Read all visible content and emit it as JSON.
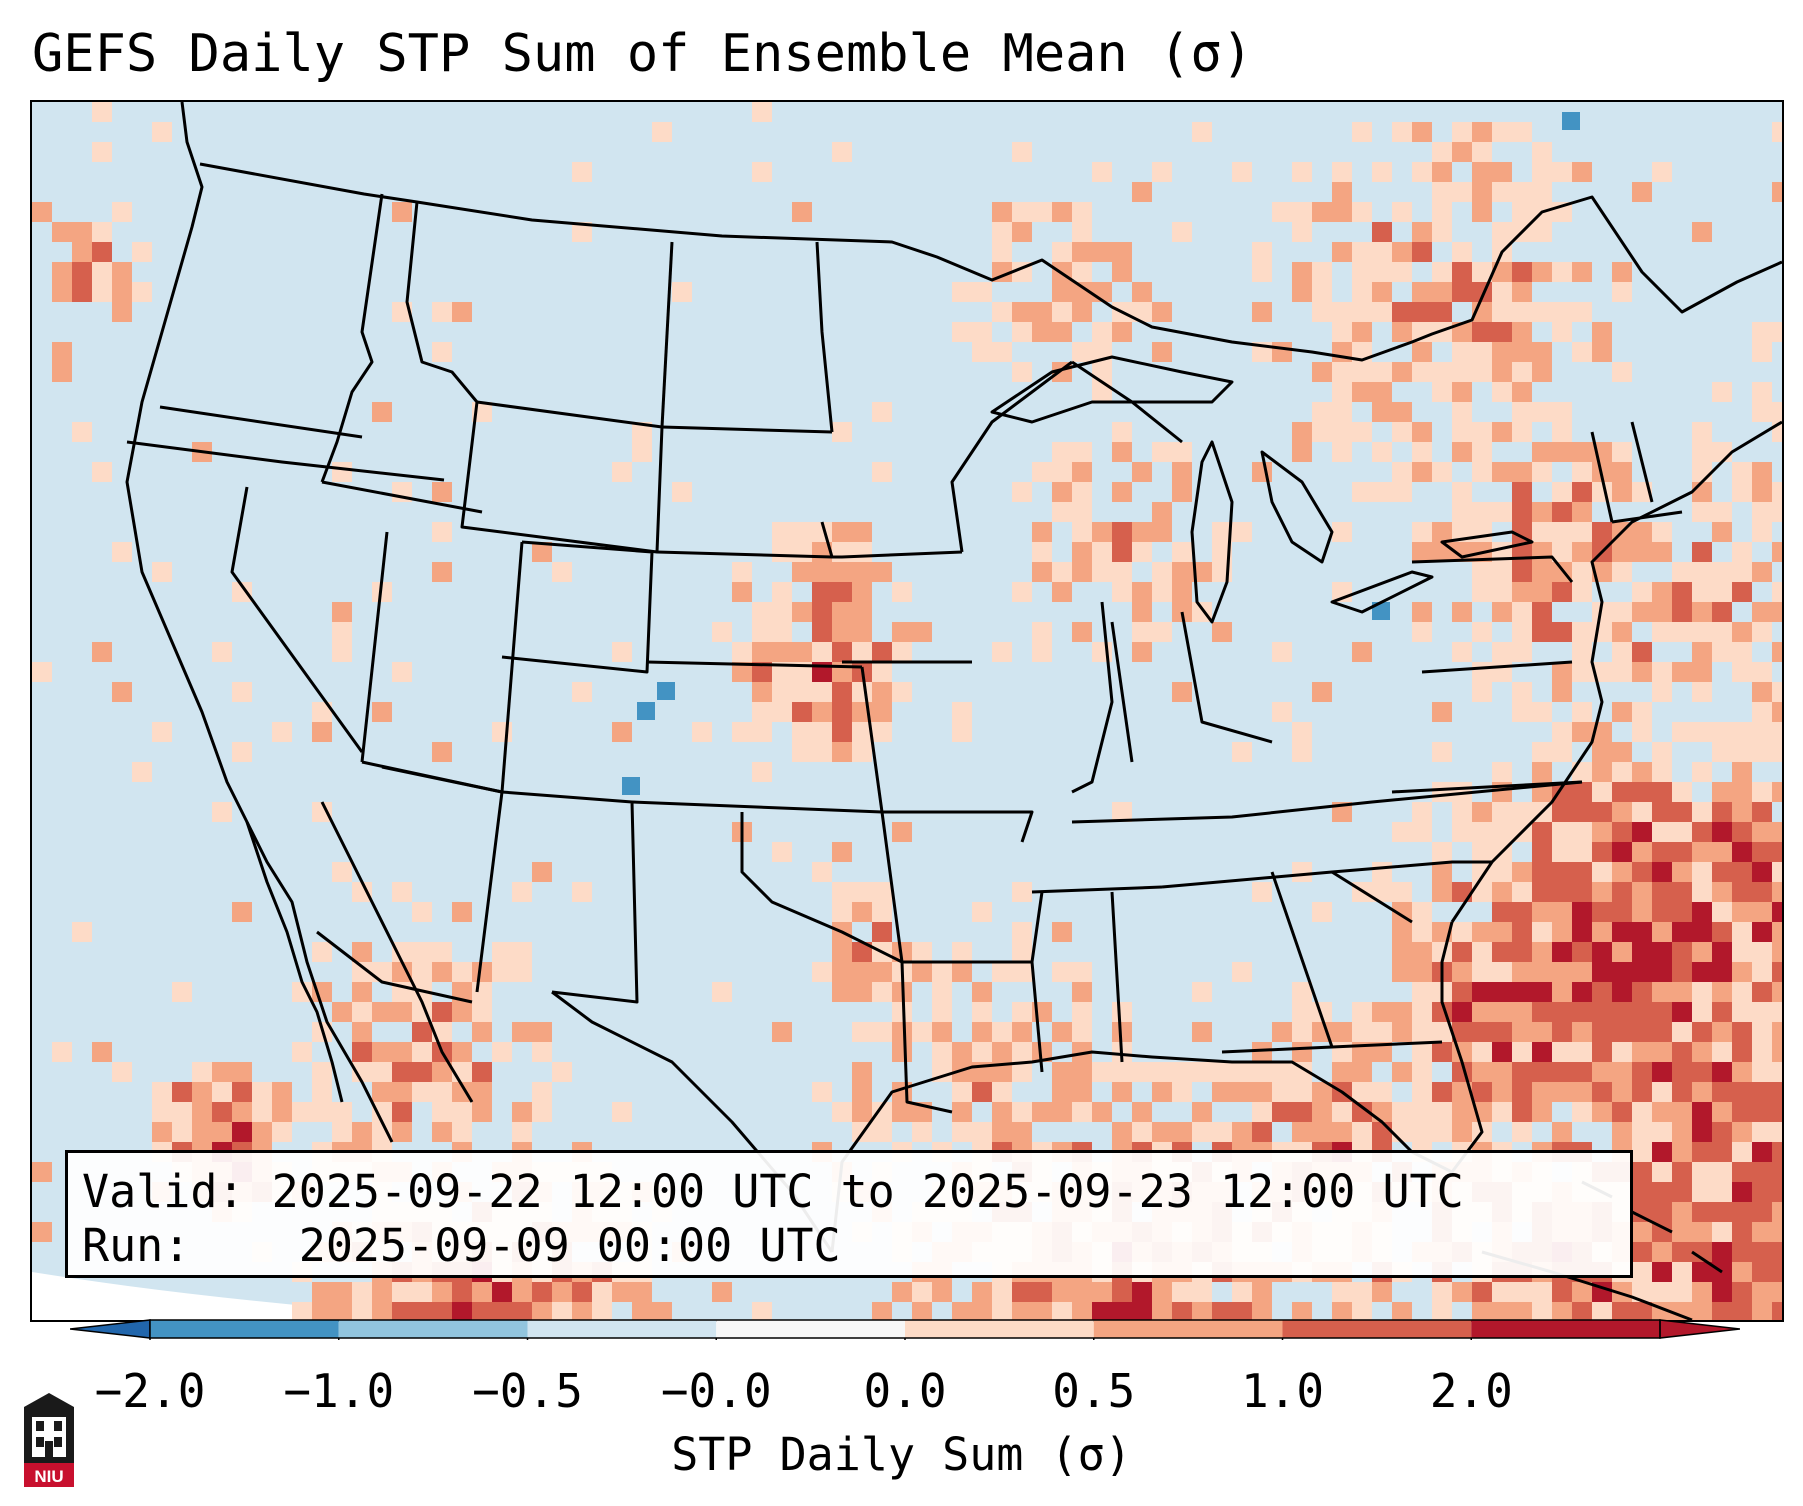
{
  "title": "GEFS Daily STP Sum of Ensemble Mean (σ)",
  "map": {
    "region": "Continental United States",
    "field": "STP daily sum, ensemble mean anomaly",
    "features": [
      "state-borders",
      "country-borders",
      "coastlines",
      "great-lakes"
    ],
    "background_color": "#d1e5f0"
  },
  "info_box": {
    "valid_label": "Valid:",
    "valid_value": "2025-09-22 12:00 UTC to 2025-09-23 12:00 UTC",
    "run_label": "Run:",
    "run_value": "2025-09-09 00:00 UTC"
  },
  "colorbar": {
    "ticks": [
      "−2.0",
      "−1.0",
      "−0.5",
      "−0.0",
      "0.0",
      "0.5",
      "1.0",
      "2.0"
    ],
    "colors": [
      "#4393c3",
      "#92c5de",
      "#d1e5f0",
      "#f7f7f7",
      "#fddbc7",
      "#f4a582",
      "#d6604d",
      "#b2182b"
    ],
    "extend_low_color": "#2166ac",
    "extend_high_color": "#b2182b",
    "label": "STP Daily Sum (σ)"
  },
  "logo": {
    "text": "NIU",
    "icon": "university-building-icon"
  }
}
